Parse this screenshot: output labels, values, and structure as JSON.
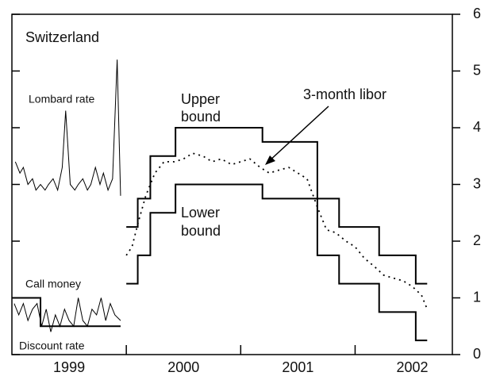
{
  "chart_data": {
    "type": "line",
    "title": "Switzerland",
    "annotations": {
      "lombard": "Lombard rate",
      "call": "Call money",
      "discount": "Discount rate",
      "upper": [
        "Upper",
        "bound"
      ],
      "lower": [
        "Lower",
        "bound"
      ],
      "libor": "3-month libor"
    },
    "xlim": [
      1999,
      2002.85
    ],
    "xticks": [
      2000,
      2001,
      2002
    ],
    "xtick_labels": [
      {
        "value": 1999.5,
        "label": "1999"
      },
      {
        "value": 2000.5,
        "label": "2000"
      },
      {
        "value": 2001.5,
        "label": "2001"
      },
      {
        "value": 2002.5,
        "label": "2002"
      }
    ],
    "ylim": [
      0,
      6
    ],
    "yticks": [
      0,
      1,
      2,
      3,
      4,
      5,
      6
    ],
    "series": [
      {
        "name": "Upper bound",
        "color": "#000",
        "style": "step",
        "x": [
          2000.0,
          2000.1,
          2000.21,
          2000.43,
          2001.19,
          2001.67,
          2001.86,
          2002.21,
          2002.53,
          2002.63
        ],
        "values": [
          2.25,
          2.75,
          3.5,
          4.0,
          3.75,
          2.75,
          2.25,
          1.75,
          1.25,
          1.25
        ]
      },
      {
        "name": "Lower bound",
        "color": "#000",
        "style": "step",
        "x": [
          2000.0,
          2000.1,
          2000.21,
          2000.43,
          2001.19,
          2001.67,
          2001.86,
          2002.21,
          2002.53,
          2002.63
        ],
        "values": [
          1.25,
          1.75,
          2.5,
          3.0,
          2.75,
          1.75,
          1.25,
          0.75,
          0.25,
          0.25
        ]
      },
      {
        "name": "3-month libor",
        "color": "#000",
        "style": "dotted",
        "x": [
          2000.0,
          2000.05,
          2000.1,
          2000.17,
          2000.25,
          2000.33,
          2000.42,
          2000.5,
          2000.58,
          2000.67,
          2000.75,
          2000.83,
          2000.92,
          2001.0,
          2001.08,
          2001.17,
          2001.25,
          2001.33,
          2001.42,
          2001.5,
          2001.58,
          2001.67,
          2001.75,
          2001.83,
          2001.92,
          2002.0,
          2002.08,
          2002.17,
          2002.25,
          2002.33,
          2002.42,
          2002.5,
          2002.58,
          2002.63
        ],
        "values": [
          1.75,
          1.9,
          2.3,
          2.8,
          3.2,
          3.4,
          3.4,
          3.45,
          3.55,
          3.5,
          3.4,
          3.45,
          3.35,
          3.4,
          3.45,
          3.3,
          3.2,
          3.25,
          3.3,
          3.2,
          3.1,
          2.6,
          2.2,
          2.15,
          2.0,
          1.9,
          1.7,
          1.55,
          1.4,
          1.35,
          1.3,
          1.2,
          1.05,
          0.8
        ]
      },
      {
        "name": "Lombard rate",
        "color": "#000",
        "style": "thin",
        "x": [
          1999.03,
          1999.07,
          1999.1,
          1999.14,
          1999.18,
          1999.21,
          1999.25,
          1999.29,
          1999.32,
          1999.36,
          1999.4,
          1999.44,
          1999.47,
          1999.51,
          1999.55,
          1999.58,
          1999.62,
          1999.66,
          1999.69,
          1999.73,
          1999.77,
          1999.8,
          1999.84,
          1999.88,
          1999.92,
          1999.95
        ],
        "values": [
          3.4,
          3.2,
          3.3,
          3.0,
          3.1,
          2.9,
          3.0,
          2.9,
          3.0,
          3.1,
          2.9,
          3.3,
          4.3,
          3.0,
          2.9,
          3.0,
          3.1,
          2.9,
          3.0,
          3.3,
          3.0,
          3.2,
          2.9,
          3.1,
          5.2,
          2.8
        ]
      },
      {
        "name": "Call money",
        "color": "#000",
        "style": "thin",
        "x": [
          1999.02,
          1999.06,
          1999.1,
          1999.14,
          1999.18,
          1999.22,
          1999.26,
          1999.3,
          1999.34,
          1999.38,
          1999.42,
          1999.46,
          1999.5,
          1999.54,
          1999.58,
          1999.62,
          1999.66,
          1999.7,
          1999.74,
          1999.78,
          1999.82,
          1999.86,
          1999.9,
          1999.95
        ],
        "values": [
          0.9,
          0.7,
          0.9,
          0.6,
          0.8,
          0.9,
          0.5,
          0.8,
          0.4,
          0.7,
          0.5,
          0.8,
          0.6,
          0.5,
          1.0,
          0.6,
          0.5,
          0.8,
          0.7,
          1.0,
          0.6,
          0.9,
          0.7,
          0.6
        ]
      },
      {
        "name": "Discount rate",
        "color": "#000",
        "style": "step",
        "x": [
          1999.0,
          1999.25,
          1999.95
        ],
        "values": [
          1.0,
          0.5,
          0.5
        ]
      }
    ]
  }
}
